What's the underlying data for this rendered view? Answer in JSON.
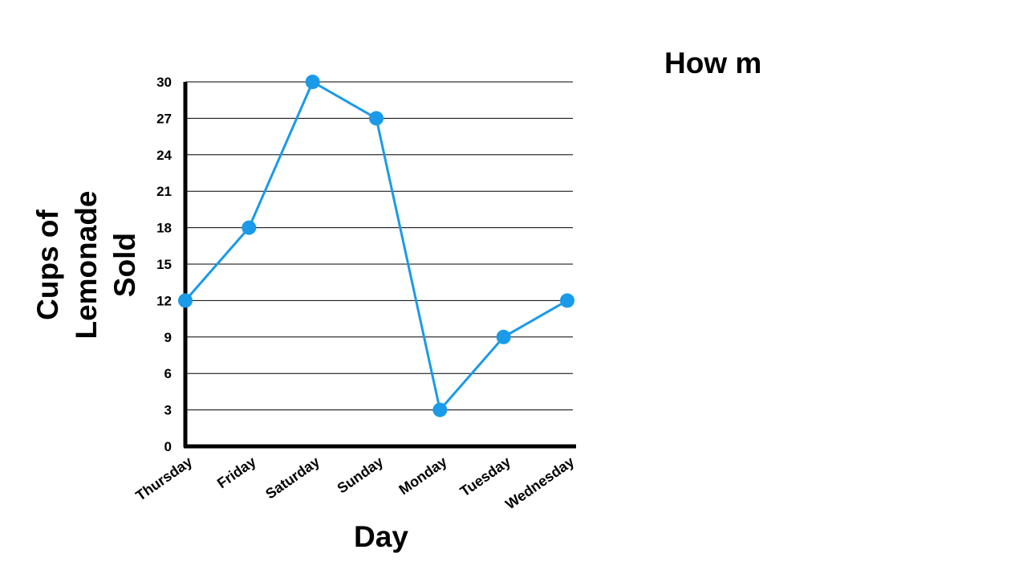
{
  "question_text": "How m",
  "chart_data": {
    "type": "line",
    "categories": [
      "Thursday",
      "Friday",
      "Saturday",
      "Sunday",
      "Monday",
      "Tuesday",
      "Wednesday"
    ],
    "values": [
      12,
      18,
      30,
      27,
      3,
      9,
      12
    ],
    "title": "",
    "xlabel": "Day",
    "ylabel_lines": [
      "Cups of",
      "Lemonade",
      "Sold"
    ],
    "ylim": [
      0,
      30
    ],
    "yticks": [
      0,
      3,
      6,
      9,
      12,
      15,
      18,
      21,
      24,
      27,
      30
    ],
    "grid": true,
    "line_color": "#1a9ae8",
    "axis_color": "#000000"
  }
}
